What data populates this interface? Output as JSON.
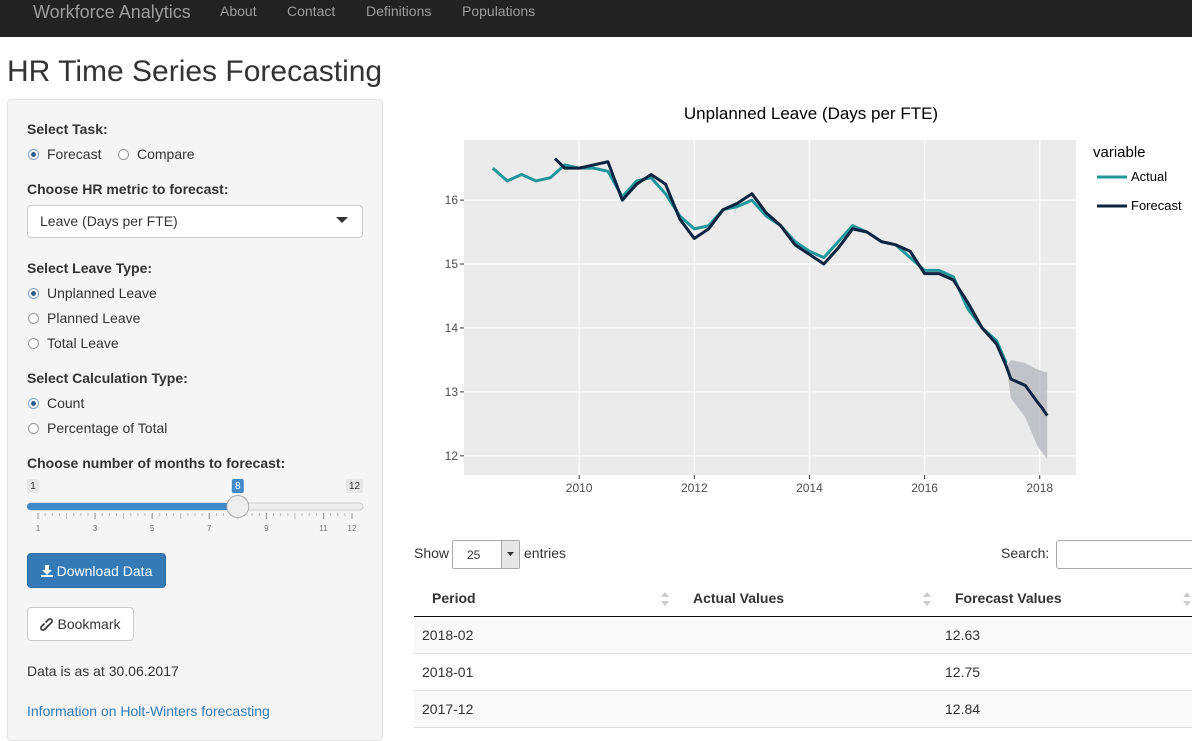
{
  "navbar": {
    "brand": "Workforce Analytics",
    "links": [
      "About",
      "Contact",
      "Definitions",
      "Populations"
    ]
  },
  "header": {
    "title": "HR Time Series Forecasting"
  },
  "sidebar": {
    "task": {
      "label": "Select Task:",
      "options": [
        "Forecast",
        "Compare"
      ],
      "selected": 0
    },
    "metric": {
      "label": "Choose HR metric to forecast:",
      "value": "Leave (Days per FTE)"
    },
    "leave_type": {
      "label": "Select Leave Type:",
      "options": [
        "Unplanned Leave",
        "Planned Leave",
        "Total Leave"
      ],
      "selected": 0
    },
    "calculation": {
      "label": "Select Calculation Type:",
      "options": [
        "Count",
        "Percentage of Total"
      ],
      "selected": 0
    },
    "months": {
      "label": "Choose number of months to forecast:",
      "min": 1,
      "max": 12,
      "value": 8,
      "ticks": [
        1,
        3,
        5,
        7,
        9,
        11,
        12
      ]
    },
    "download_button": "Download Data",
    "bookmark_button": "Bookmark",
    "data_note": "Data is as at 30.06.2017",
    "info_link": "Information on Holt-Winters forecasting"
  },
  "chart_data": {
    "type": "line",
    "title": "Unplanned Leave (Days per FTE)",
    "legend_title": "variable",
    "grid": true,
    "xlim": [
      2008.0,
      2018.63
    ],
    "xticks": [
      2010,
      2012,
      2014,
      2016,
      2018
    ],
    "ylim": [
      11.7,
      16.94
    ],
    "yticks": [
      12,
      13,
      14,
      15,
      16
    ],
    "series": [
      {
        "name": "Actual",
        "color": "#22969b",
        "x": [
          2008.5,
          2008.75,
          2009.0,
          2009.25,
          2009.5,
          2009.75,
          2010.0,
          2010.25,
          2010.5,
          2010.75,
          2011.0,
          2011.25,
          2011.5,
          2011.75,
          2012.0,
          2012.25,
          2012.5,
          2012.75,
          2013.0,
          2013.25,
          2013.5,
          2013.75,
          2014.0,
          2014.25,
          2014.5,
          2014.75,
          2015.0,
          2015.25,
          2015.5,
          2015.75,
          2016.0,
          2016.25,
          2016.5,
          2016.75,
          2017.0,
          2017.25,
          2017.42
        ],
        "values": [
          16.5,
          16.3,
          16.4,
          16.3,
          16.35,
          16.55,
          16.5,
          16.5,
          16.45,
          16.05,
          16.3,
          16.35,
          16.1,
          15.75,
          15.55,
          15.6,
          15.85,
          15.9,
          16.0,
          15.75,
          15.6,
          15.35,
          15.2,
          15.1,
          15.35,
          15.6,
          15.5,
          15.35,
          15.3,
          15.1,
          14.9,
          14.9,
          14.8,
          14.3,
          14.0,
          13.8,
          13.45
        ]
      },
      {
        "name": "Forecast",
        "color": "#0e2440",
        "x": [
          2009.58,
          2009.75,
          2010.0,
          2010.25,
          2010.5,
          2010.75,
          2011.0,
          2011.25,
          2011.5,
          2011.75,
          2012.0,
          2012.25,
          2012.5,
          2012.75,
          2013.0,
          2013.25,
          2013.5,
          2013.75,
          2014.0,
          2014.25,
          2014.5,
          2014.75,
          2015.0,
          2015.25,
          2015.5,
          2015.75,
          2016.0,
          2016.25,
          2016.5,
          2016.75,
          2017.0,
          2017.25,
          2017.42,
          2017.5,
          2017.75,
          2017.96,
          2018.04,
          2018.13
        ],
        "values": [
          16.65,
          16.5,
          16.5,
          16.55,
          16.6,
          16.0,
          16.25,
          16.4,
          16.25,
          15.7,
          15.4,
          15.55,
          15.85,
          15.95,
          16.1,
          15.8,
          15.6,
          15.3,
          15.15,
          15.0,
          15.25,
          15.55,
          15.5,
          15.35,
          15.3,
          15.2,
          14.85,
          14.85,
          14.75,
          14.4,
          14.0,
          13.75,
          13.4,
          13.2,
          13.1,
          12.84,
          12.75,
          12.63
        ]
      }
    ],
    "band": {
      "color": "#b9bdc2",
      "x": [
        2017.42,
        2017.5,
        2017.75,
        2017.96,
        2018.13
      ],
      "lower": [
        13.4,
        12.9,
        12.6,
        12.15,
        11.95
      ],
      "upper": [
        13.4,
        13.5,
        13.45,
        13.35,
        13.3
      ]
    }
  },
  "table": {
    "show_label": "Show",
    "page_length": 25,
    "entries_label": "entries",
    "search_label": "Search:",
    "columns": [
      "Period",
      "Actual Values",
      "Forecast Values"
    ],
    "rows": [
      [
        "2018-02",
        null,
        12.63
      ],
      [
        "2018-01",
        null,
        12.75
      ],
      [
        "2017-12",
        null,
        12.84
      ]
    ]
  }
}
